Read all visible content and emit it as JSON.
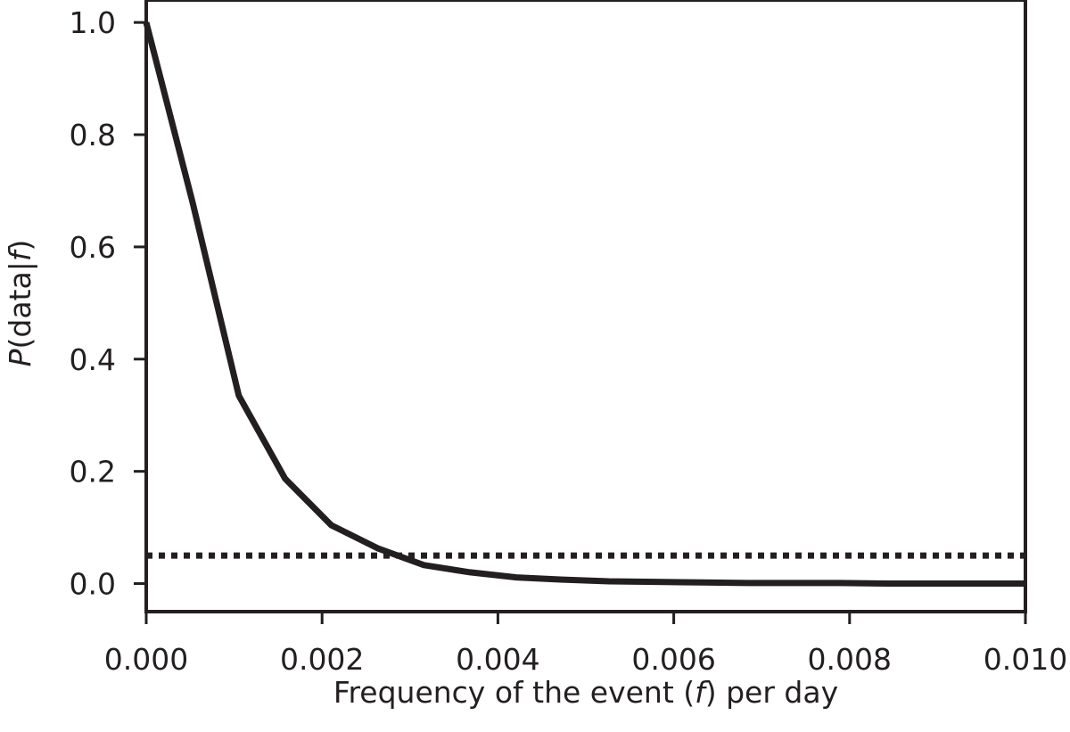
{
  "chart_data": {
    "type": "line",
    "xlabel_prefix": "Frequency of the event (",
    "xlabel_var": "f",
    "xlabel_suffix": ") per day",
    "ylabel_var1": "P",
    "ylabel_mid": "(data|",
    "ylabel_var2": "f",
    "ylabel_end": ")",
    "xlim": [
      0,
      0.01
    ],
    "ylim": [
      -0.05,
      1.04
    ],
    "xticks": [
      0.0,
      0.002,
      0.004,
      0.006,
      0.008,
      0.01
    ],
    "xtick_labels": [
      "0.000",
      "0.002",
      "0.004",
      "0.006",
      "0.008",
      "0.010"
    ],
    "yticks": [
      0.0,
      0.2,
      0.4,
      0.6,
      0.8,
      1.0
    ],
    "ytick_labels": [
      "0.0",
      "0.2",
      "0.4",
      "0.6",
      "0.8",
      "1.0"
    ],
    "grid": false,
    "series": [
      {
        "style": "solid",
        "x": [
          0.0,
          0.000526,
          0.001053,
          0.001579,
          0.002105,
          0.002632,
          0.003158,
          0.003684,
          0.004211,
          0.004737,
          0.005263,
          0.005789,
          0.006316,
          0.006842,
          0.007368,
          0.007895,
          0.008421,
          0.008947,
          0.009474,
          0.01
        ],
        "y": [
          1.0,
          0.68,
          0.335,
          0.187,
          0.104,
          0.063,
          0.033,
          0.02,
          0.011,
          0.007,
          0.004,
          0.003,
          0.002,
          0.001,
          0.001,
          0.001,
          0.0,
          0.0,
          0.0,
          0.0
        ]
      },
      {
        "style": "dotted",
        "x": [
          0.0,
          0.01
        ],
        "y": [
          0.05,
          0.05
        ]
      }
    ]
  }
}
